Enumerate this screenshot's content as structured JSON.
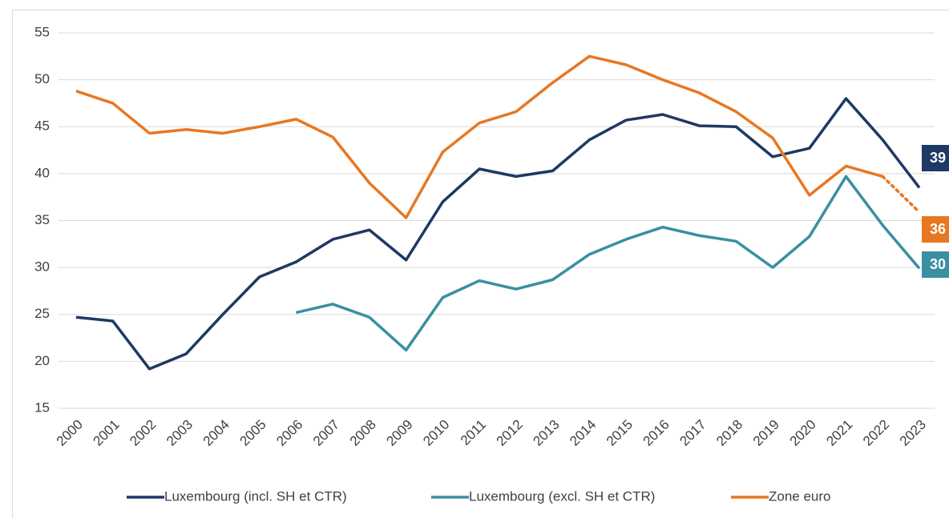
{
  "chart_data": {
    "type": "line",
    "categories": [
      "2000",
      "2001",
      "2002",
      "2003",
      "2004",
      "2005",
      "2006",
      "2007",
      "2008",
      "2009",
      "2010",
      "2011",
      "2012",
      "2013",
      "2014",
      "2015",
      "2016",
      "2017",
      "2018",
      "2019",
      "2020",
      "2021",
      "2022",
      "2023"
    ],
    "series": [
      {
        "name": "Luxembourg (incl. SH et CTR)",
        "color": "#1f3864",
        "end_label": "39",
        "values": [
          24.7,
          24.3,
          19.2,
          20.8,
          25.0,
          29.0,
          30.6,
          33.0,
          34.0,
          30.8,
          37.0,
          40.5,
          39.7,
          40.3,
          43.6,
          45.7,
          46.3,
          45.1,
          45.0,
          41.8,
          42.7,
          48.0,
          43.6,
          38.5
        ]
      },
      {
        "name": "Luxembourg (excl. SH et CTR)",
        "color": "#3a8fa3",
        "end_label": "30",
        "values": [
          null,
          null,
          null,
          null,
          null,
          null,
          25.2,
          26.1,
          24.7,
          21.2,
          26.8,
          28.6,
          27.7,
          28.7,
          31.4,
          33.0,
          34.3,
          33.4,
          32.8,
          30.0,
          33.3,
          39.7,
          34.5,
          29.9
        ]
      },
      {
        "name": "Zone euro",
        "color": "#e87722",
        "end_label": "36",
        "dotted_after": 22,
        "values": [
          48.8,
          47.5,
          44.3,
          44.7,
          44.3,
          45.0,
          45.8,
          43.9,
          39.0,
          35.3,
          42.3,
          45.4,
          46.6,
          49.7,
          52.5,
          51.6,
          50.0,
          48.6,
          46.6,
          43.8,
          37.7,
          40.8,
          39.7,
          35.9
        ]
      }
    ],
    "ylim": [
      15,
      55
    ],
    "yticks": [
      15,
      20,
      25,
      30,
      35,
      40,
      45,
      50,
      55
    ],
    "grid": true,
    "legend": "bottom"
  }
}
